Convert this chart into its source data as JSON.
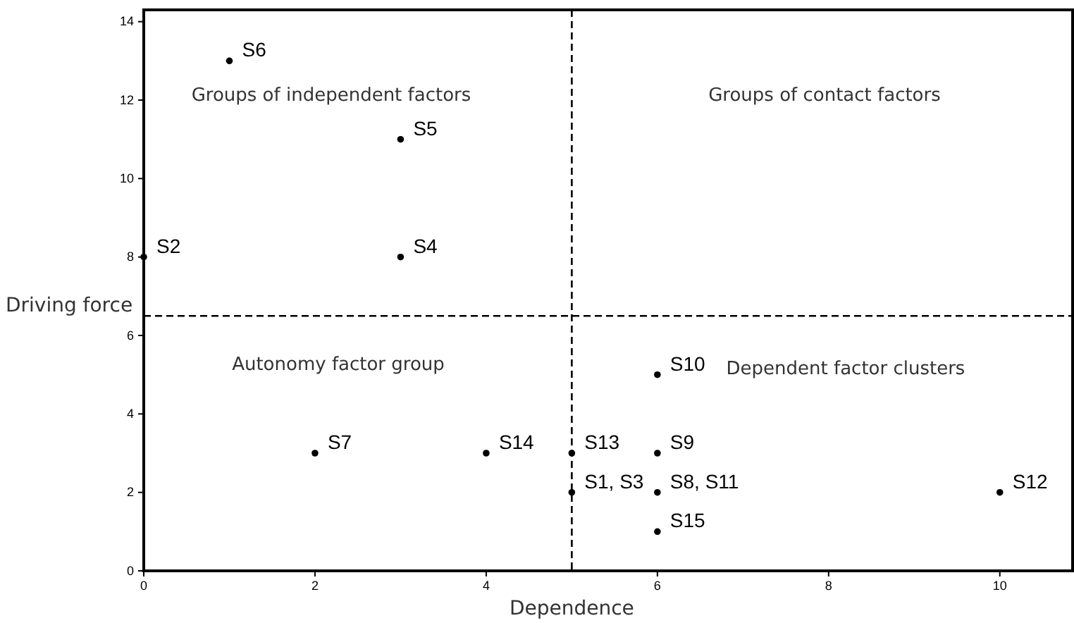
{
  "chart_data": {
    "type": "scatter",
    "xlabel": "Dependence",
    "ylabel": "Driving force",
    "x": [
      1,
      3,
      0,
      3,
      6,
      2,
      4,
      5,
      6,
      5,
      6,
      10,
      6
    ],
    "series": [
      {
        "color": "#000000",
        "values": [
          13,
          11,
          8,
          8,
          5,
          3,
          3,
          3,
          3,
          2,
          2,
          2,
          1
        ],
        "value_labels": [
          "S6",
          "S5",
          "S2",
          "S4",
          "S10",
          "S7",
          "S14",
          "S13",
          "S9",
          "S1, S3",
          "S8, S11",
          "S12",
          "S15"
        ]
      }
    ],
    "xlim": [
      0,
      10.85
    ],
    "ylim": [
      0,
      14.3
    ],
    "xticks": [
      0,
      2,
      4,
      6,
      8,
      10
    ],
    "yticks": [
      0,
      2,
      4,
      6,
      8,
      10,
      12,
      14
    ],
    "ref_lines": [
      {
        "axis": "x",
        "value": 5,
        "color": "#000000",
        "line_style": "dashed"
      },
      {
        "axis": "y",
        "value": 6.5,
        "color": "#000000",
        "line_style": "dashed"
      }
    ],
    "annotations": [
      "Groups of independent factors",
      "Groups of contact factors",
      "Autonomy factor group",
      "Dependent factor clusters"
    ],
    "marker": "circle",
    "grid": false
  }
}
